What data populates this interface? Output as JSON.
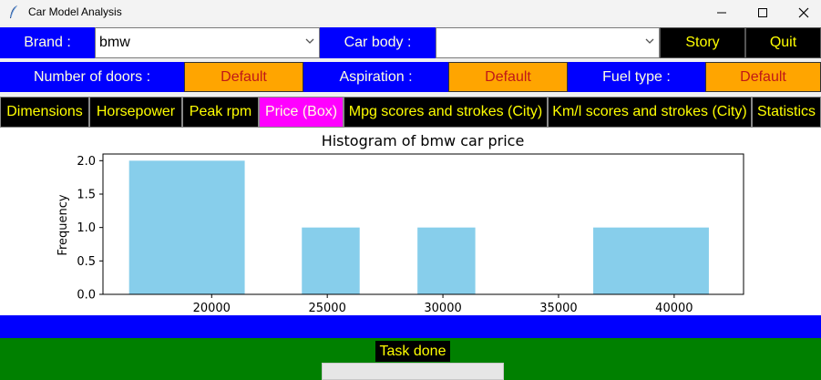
{
  "window": {
    "title": "Car Model Analysis"
  },
  "filters": {
    "brand_label": "Brand :",
    "brand_value": "bmw",
    "body_label": "Car body :",
    "body_value": "",
    "story_label": "Story",
    "quit_label": "Quit",
    "doors_label": "Number of doors :",
    "doors_value": "Default",
    "aspiration_label": "Aspiration :",
    "aspiration_value": "Default",
    "fuel_label": "Fuel type :",
    "fuel_value": "Default"
  },
  "tabs": [
    {
      "label": "Dimensions",
      "active": false
    },
    {
      "label": "Horsepower",
      "active": false
    },
    {
      "label": "Peak rpm",
      "active": false
    },
    {
      "label": "Price (Box)",
      "active": true
    },
    {
      "label": "Mpg scores and strokes (City)",
      "active": false
    },
    {
      "label": "Km/l scores and strokes (City)",
      "active": false
    },
    {
      "label": "Statistics",
      "active": false
    }
  ],
  "chart_data": {
    "type": "bar",
    "title": "Histogram of bmw car price",
    "xlabel": "",
    "ylabel": "Frequency",
    "bins": [
      {
        "start": 16430,
        "end": 21430,
        "count": 2
      },
      {
        "start": 23900,
        "end": 26400,
        "count": 1
      },
      {
        "start": 28900,
        "end": 31400,
        "count": 1
      },
      {
        "start": 36500,
        "end": 41500,
        "count": 1
      }
    ],
    "xlim": [
      15300,
      43000
    ],
    "ylim": [
      0,
      2.1
    ],
    "xticks": [
      20000,
      25000,
      30000,
      35000,
      40000
    ],
    "yticks": [
      0.0,
      0.5,
      1.0,
      1.5,
      2.0
    ],
    "ytick_labels": [
      "0.0",
      "0.5",
      "1.0",
      "1.5",
      "2.0"
    ],
    "bar_color": "#87ceeb",
    "grid": false
  },
  "status": {
    "text": "Task done"
  }
}
